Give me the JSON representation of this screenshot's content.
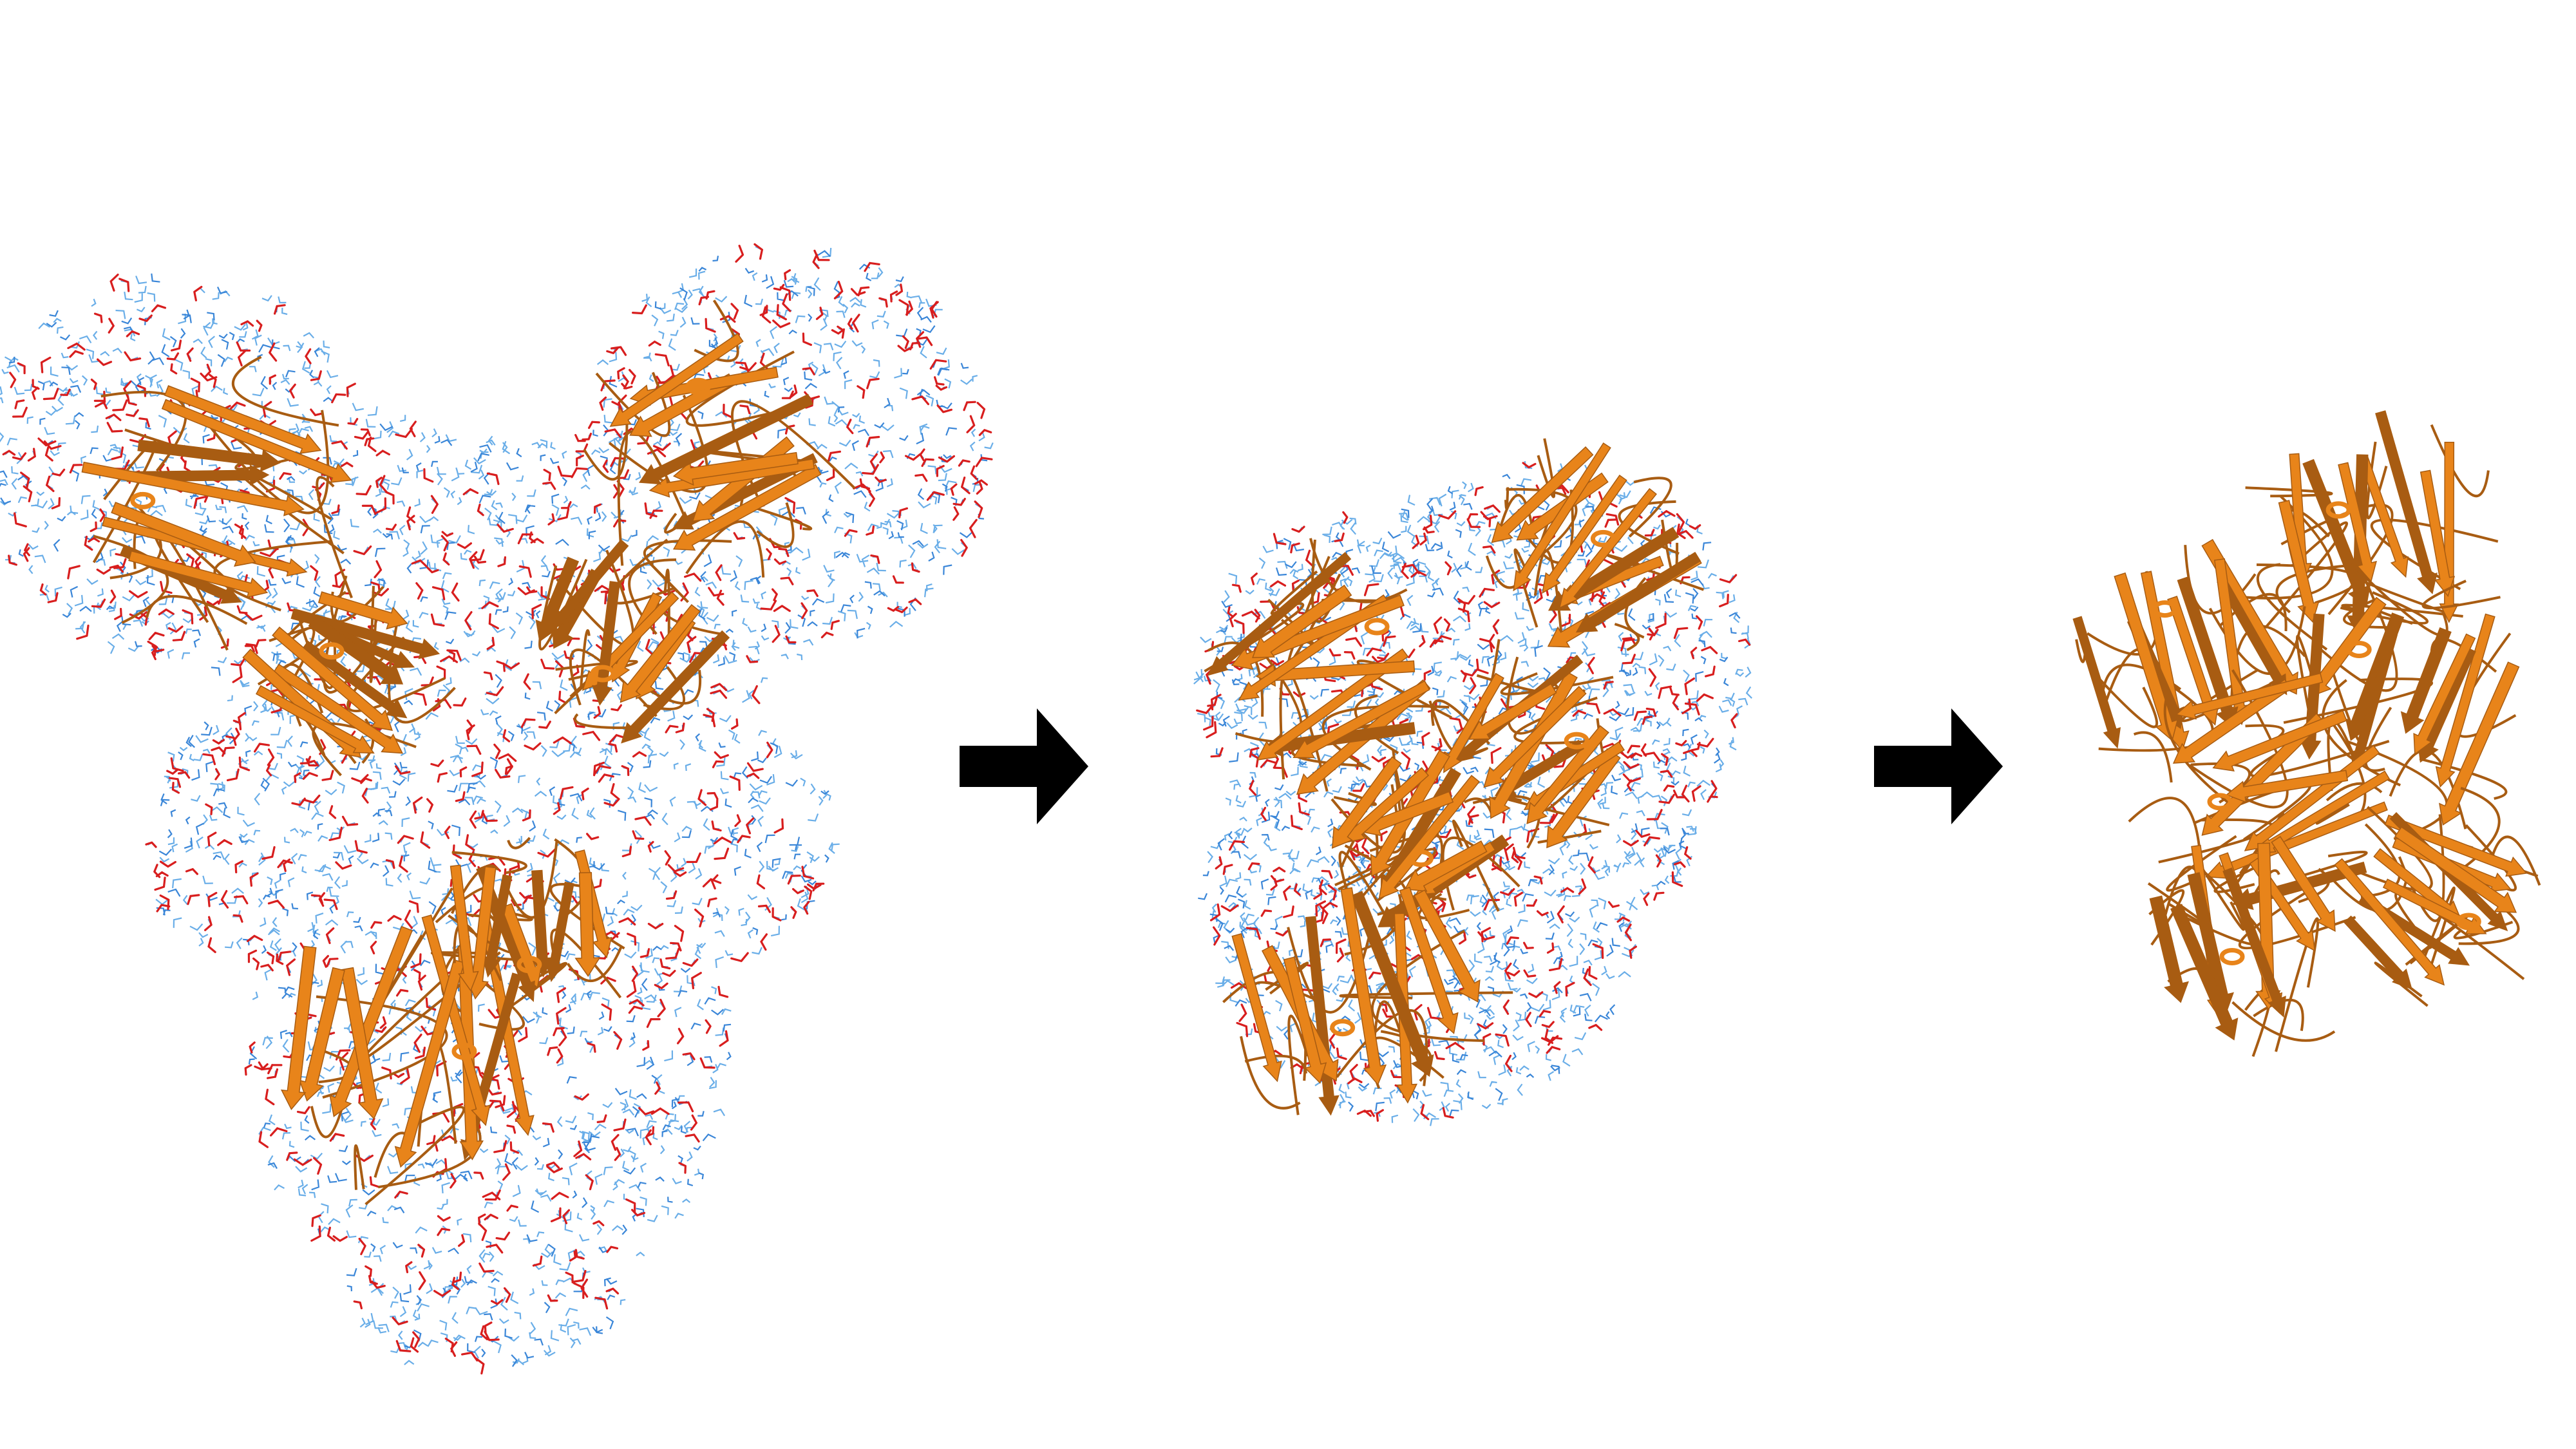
{
  "figure": {
    "background": "#ffffff",
    "panels": [
      {
        "name": "protein-in-full-water-box",
        "waters": "dense"
      },
      {
        "name": "protein-in-reduced-water-shell",
        "waters": "sparse"
      },
      {
        "name": "protein-without-solvent",
        "waters": "none"
      }
    ],
    "arrow_icon": "right-arrow-icon",
    "colors": {
      "protein_ribbon": "#e8841a",
      "protein_ribbon_dark": "#a85c12",
      "water_light": "#6aaee8",
      "water_dark": "#3a86d8",
      "water_oxygen": "#d81e1e",
      "arrow": "#000000"
    }
  }
}
